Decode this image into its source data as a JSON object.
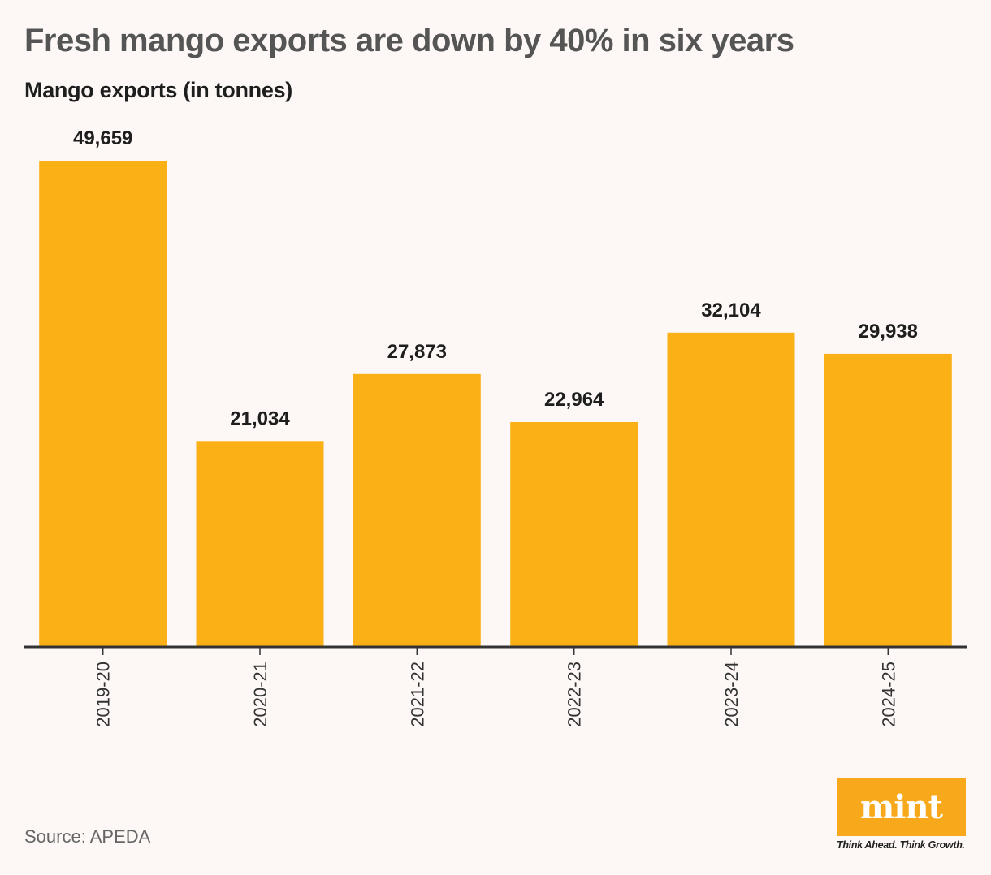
{
  "title": "Fresh mango exports are down by 40% in six years",
  "subtitle": "Mango exports (in tonnes)",
  "source": "Source: APEDA",
  "logo": {
    "name": "mint",
    "tagline": "Think Ahead. Think Growth."
  },
  "colors": {
    "bar": "#fbb116",
    "axis": "#333333",
    "logo_bg": "#f7a81b",
    "background": "#fdf8f6"
  },
  "chart_data": {
    "type": "bar",
    "title": "Fresh mango exports are down by 40% in six years",
    "ylabel": "Mango exports (in tonnes)",
    "xlabel": "",
    "categories": [
      "2019-20",
      "2020-21",
      "2021-22",
      "2022-23",
      "2023-24",
      "2024-25"
    ],
    "values": [
      49659,
      21034,
      27873,
      22964,
      32104,
      29938
    ],
    "value_labels": [
      "49,659",
      "21,034",
      "27,873",
      "22,964",
      "32,104",
      "29,938"
    ],
    "ylim": [
      0,
      49659
    ],
    "grid": false,
    "legend": "none"
  }
}
